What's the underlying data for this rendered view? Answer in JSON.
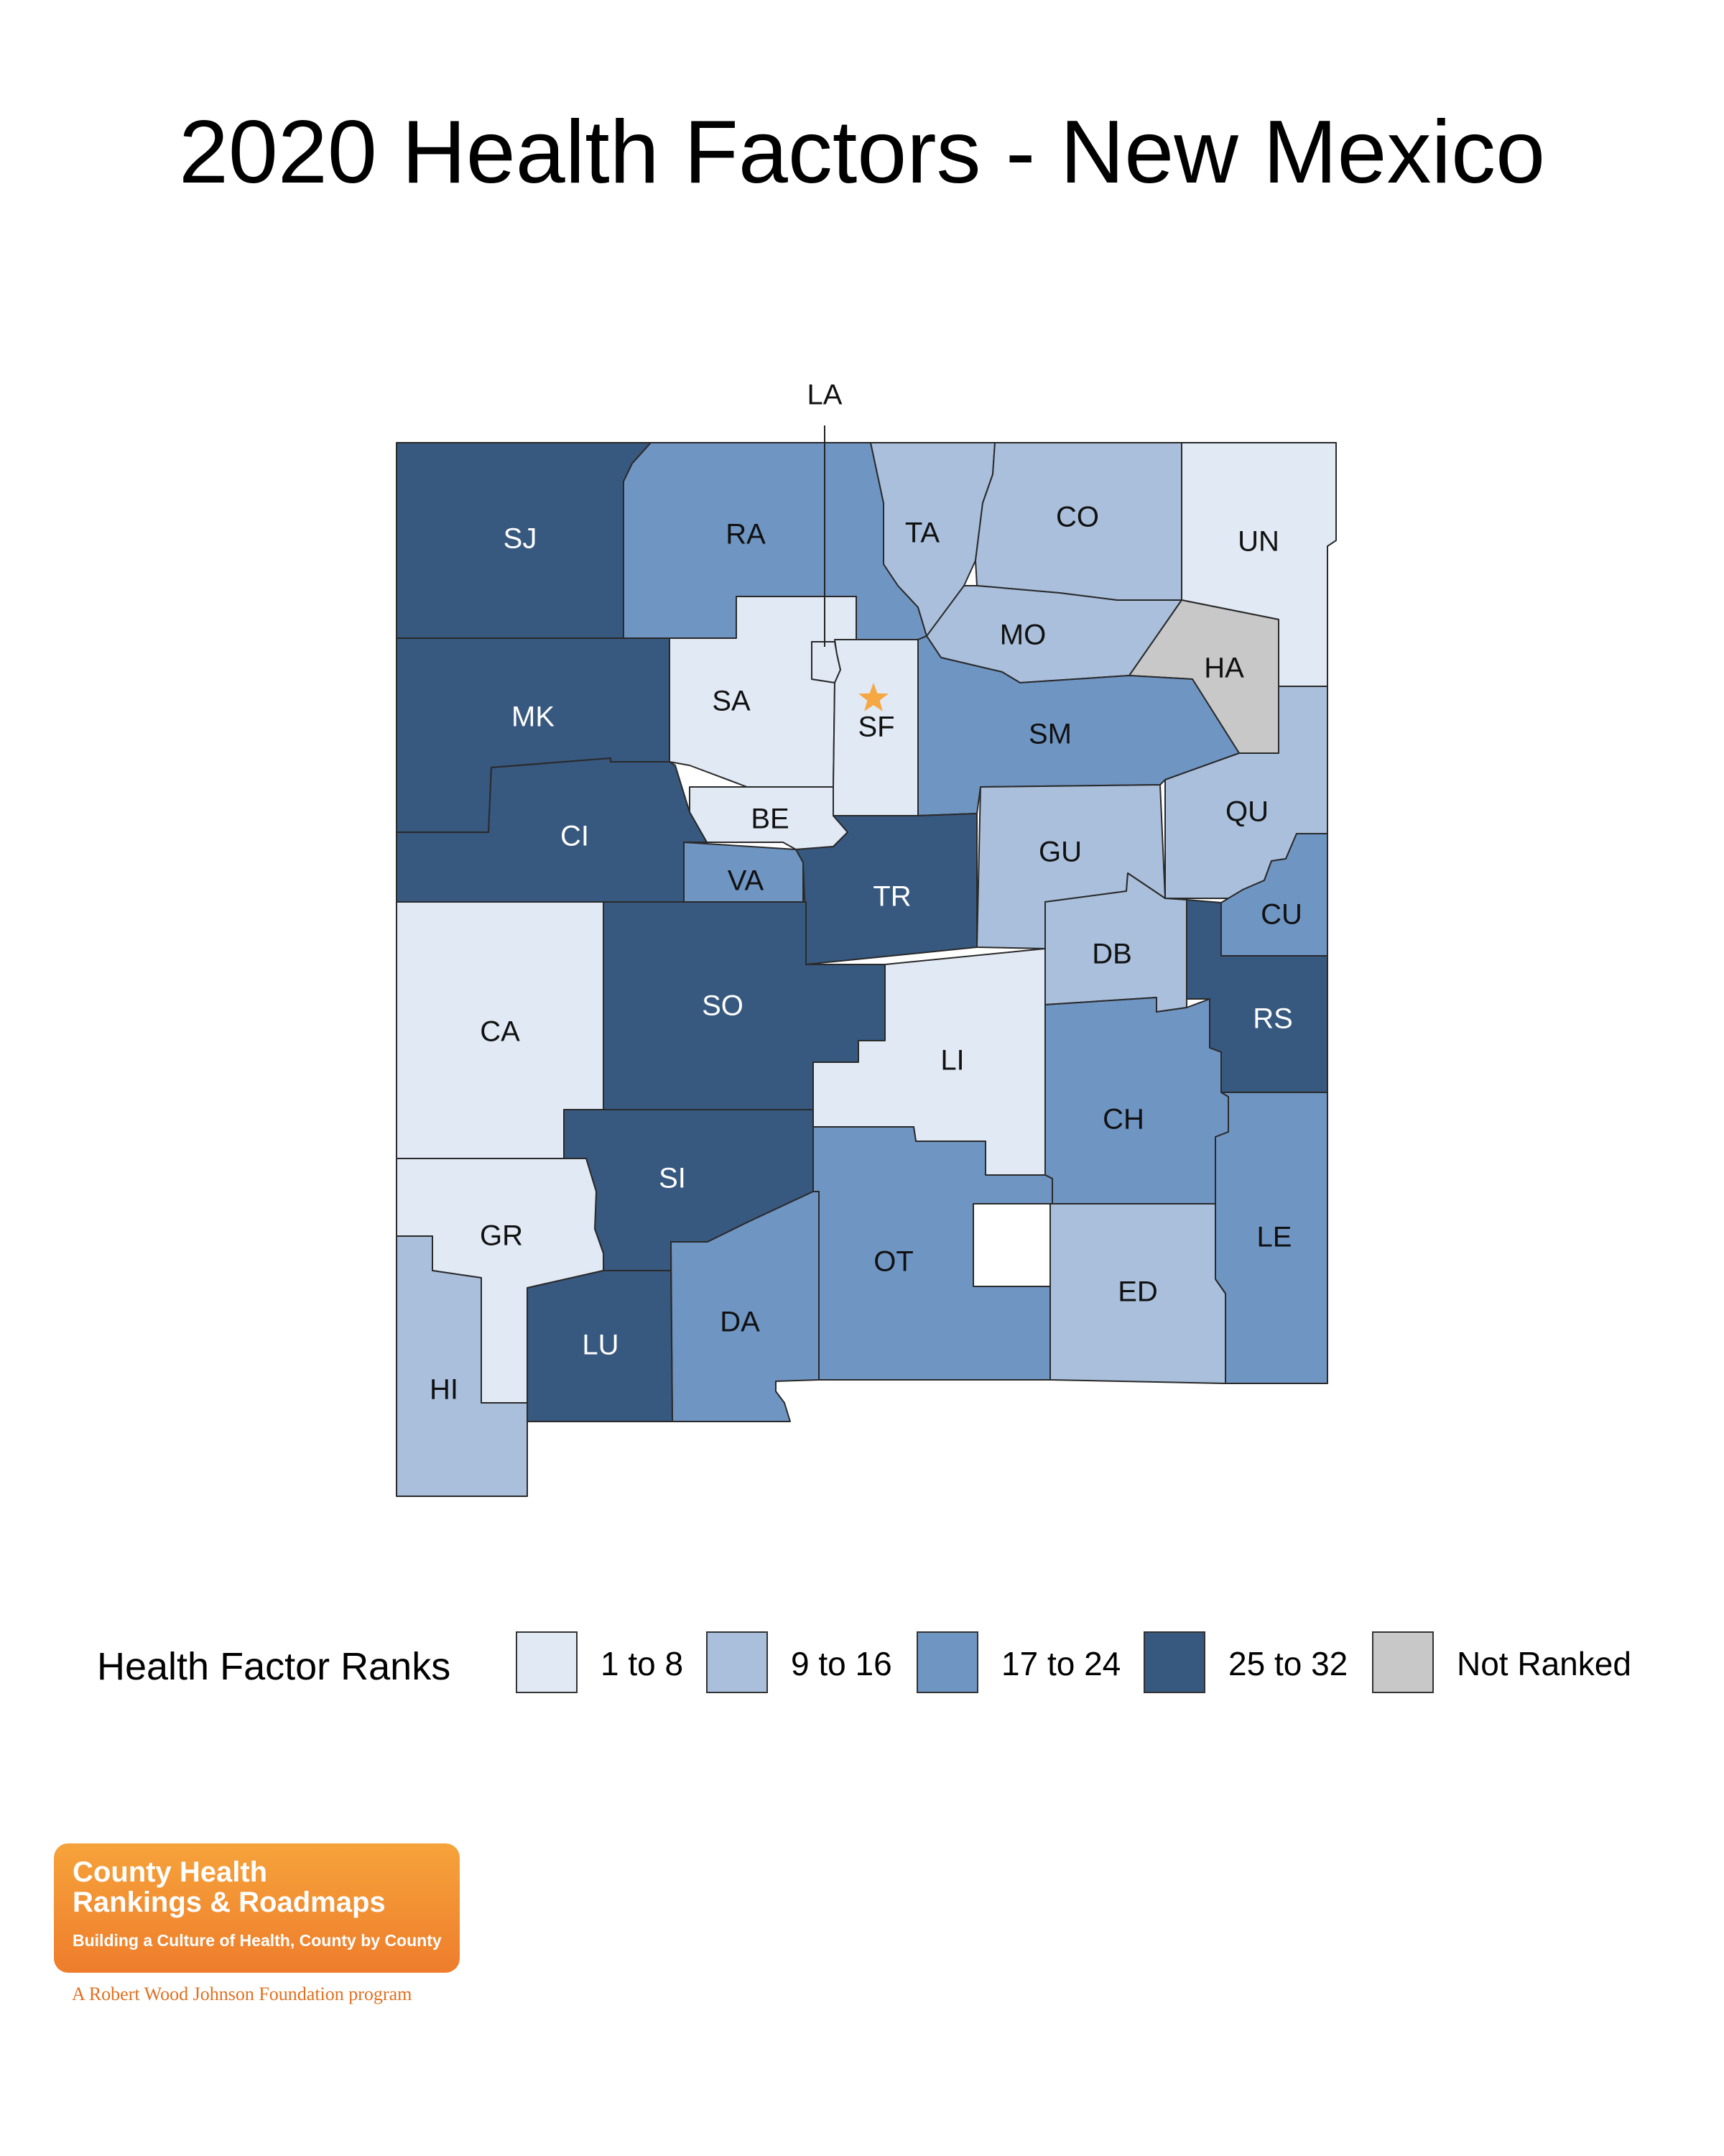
{
  "title": "2020 Health Factors - New Mexico",
  "colors": {
    "1 to 8": "#e1e9f4",
    "9 to 16": "#a9bfdb",
    "17 to 24": "#6f95c3",
    "25 to 32": "#37587f",
    "Not Ranked": "#c8c8c8",
    "label_dark": "#111111",
    "label_light": "#ffffff",
    "capital_star": "#f5a742"
  },
  "counties": [
    {
      "abbr": "SJ",
      "rank_group": "25 to 32"
    },
    {
      "abbr": "RA",
      "rank_group": "17 to 24"
    },
    {
      "abbr": "TA",
      "rank_group": "9 to 16"
    },
    {
      "abbr": "CO",
      "rank_group": "9 to 16"
    },
    {
      "abbr": "UN",
      "rank_group": "1 to 8"
    },
    {
      "abbr": "MO",
      "rank_group": "9 to 16"
    },
    {
      "abbr": "HA",
      "rank_group": "Not Ranked"
    },
    {
      "abbr": "MK",
      "rank_group": "25 to 32"
    },
    {
      "abbr": "SA",
      "rank_group": "1 to 8"
    },
    {
      "abbr": "LA",
      "rank_group": "1 to 8"
    },
    {
      "abbr": "SF",
      "rank_group": "1 to 8",
      "capital": true
    },
    {
      "abbr": "SM",
      "rank_group": "17 to 24"
    },
    {
      "abbr": "QU",
      "rank_group": "9 to 16"
    },
    {
      "abbr": "BE",
      "rank_group": "1 to 8"
    },
    {
      "abbr": "CI",
      "rank_group": "25 to 32"
    },
    {
      "abbr": "VA",
      "rank_group": "17 to 24"
    },
    {
      "abbr": "TR",
      "rank_group": "25 to 32"
    },
    {
      "abbr": "GU",
      "rank_group": "9 to 16"
    },
    {
      "abbr": "CU",
      "rank_group": "17 to 24"
    },
    {
      "abbr": "DB",
      "rank_group": "9 to 16"
    },
    {
      "abbr": "RS",
      "rank_group": "25 to 32"
    },
    {
      "abbr": "CA",
      "rank_group": "1 to 8"
    },
    {
      "abbr": "SO",
      "rank_group": "25 to 32"
    },
    {
      "abbr": "LI",
      "rank_group": "1 to 8"
    },
    {
      "abbr": "CH",
      "rank_group": "17 to 24"
    },
    {
      "abbr": "SI",
      "rank_group": "25 to 32"
    },
    {
      "abbr": "GR",
      "rank_group": "1 to 8"
    },
    {
      "abbr": "OT",
      "rank_group": "17 to 24"
    },
    {
      "abbr": "LE",
      "rank_group": "17 to 24"
    },
    {
      "abbr": "ED",
      "rank_group": "9 to 16"
    },
    {
      "abbr": "DA",
      "rank_group": "17 to 24"
    },
    {
      "abbr": "LU",
      "rank_group": "25 to 32"
    },
    {
      "abbr": "HI",
      "rank_group": "9 to 16"
    }
  ],
  "legend": {
    "title": "Health Factor Ranks",
    "items": [
      "1 to 8",
      "9 to 16",
      "17 to 24",
      "25 to 32",
      "Not Ranked"
    ]
  },
  "logo": {
    "line1": "County Health",
    "line2": "Rankings & Roadmaps",
    "line3": "Building a Culture of Health, County by County",
    "sub": "A Robert Wood Johnson Foundation program"
  }
}
